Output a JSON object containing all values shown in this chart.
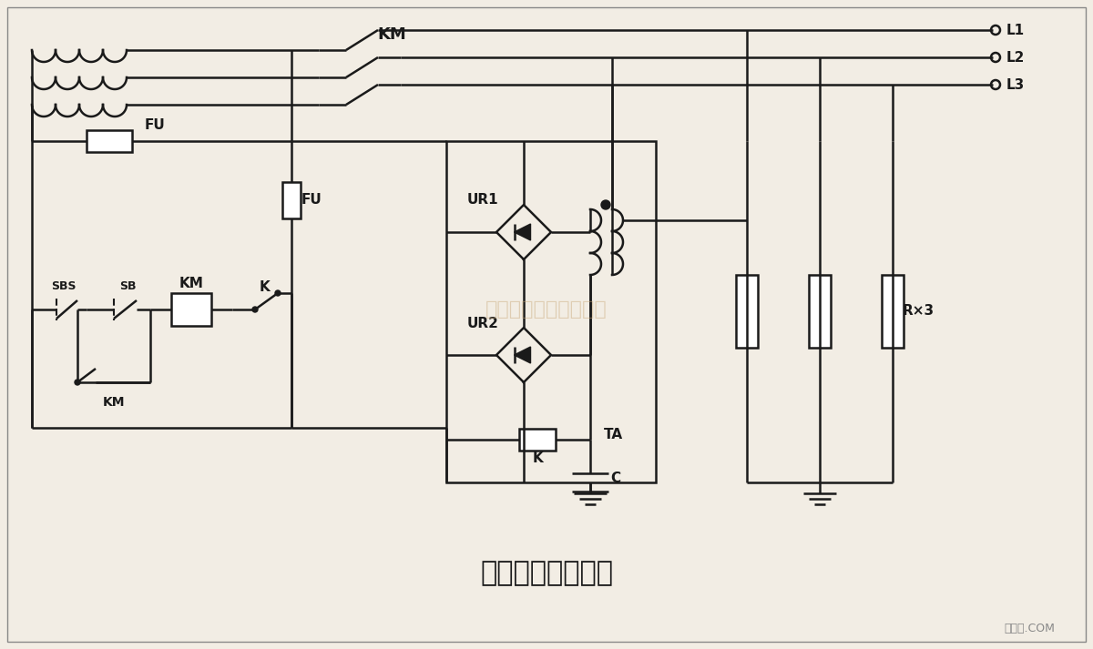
{
  "title": "漏电流式保护电路",
  "bg_color": "#f2ede4",
  "line_color": "#1a1a1a",
  "watermark": "杭州将睿科技有限公司",
  "watermark_color": "#c8a878",
  "label_KM_top": "KM",
  "label_L1": "L1",
  "label_L2": "L2",
  "label_L3": "L3",
  "label_FU1": "FU",
  "label_FU2": "FU",
  "label_SBS": "SBS",
  "label_SB": "SB",
  "label_KM_coil": "KM",
  "label_K_relay": "K",
  "label_KM_contact": "KM",
  "label_UR1": "UR1",
  "label_UR2": "UR2",
  "label_K_fuse": "K",
  "label_TA": "TA",
  "label_C": "C",
  "label_Rx3": "R×3",
  "footer": "接线图.COM"
}
